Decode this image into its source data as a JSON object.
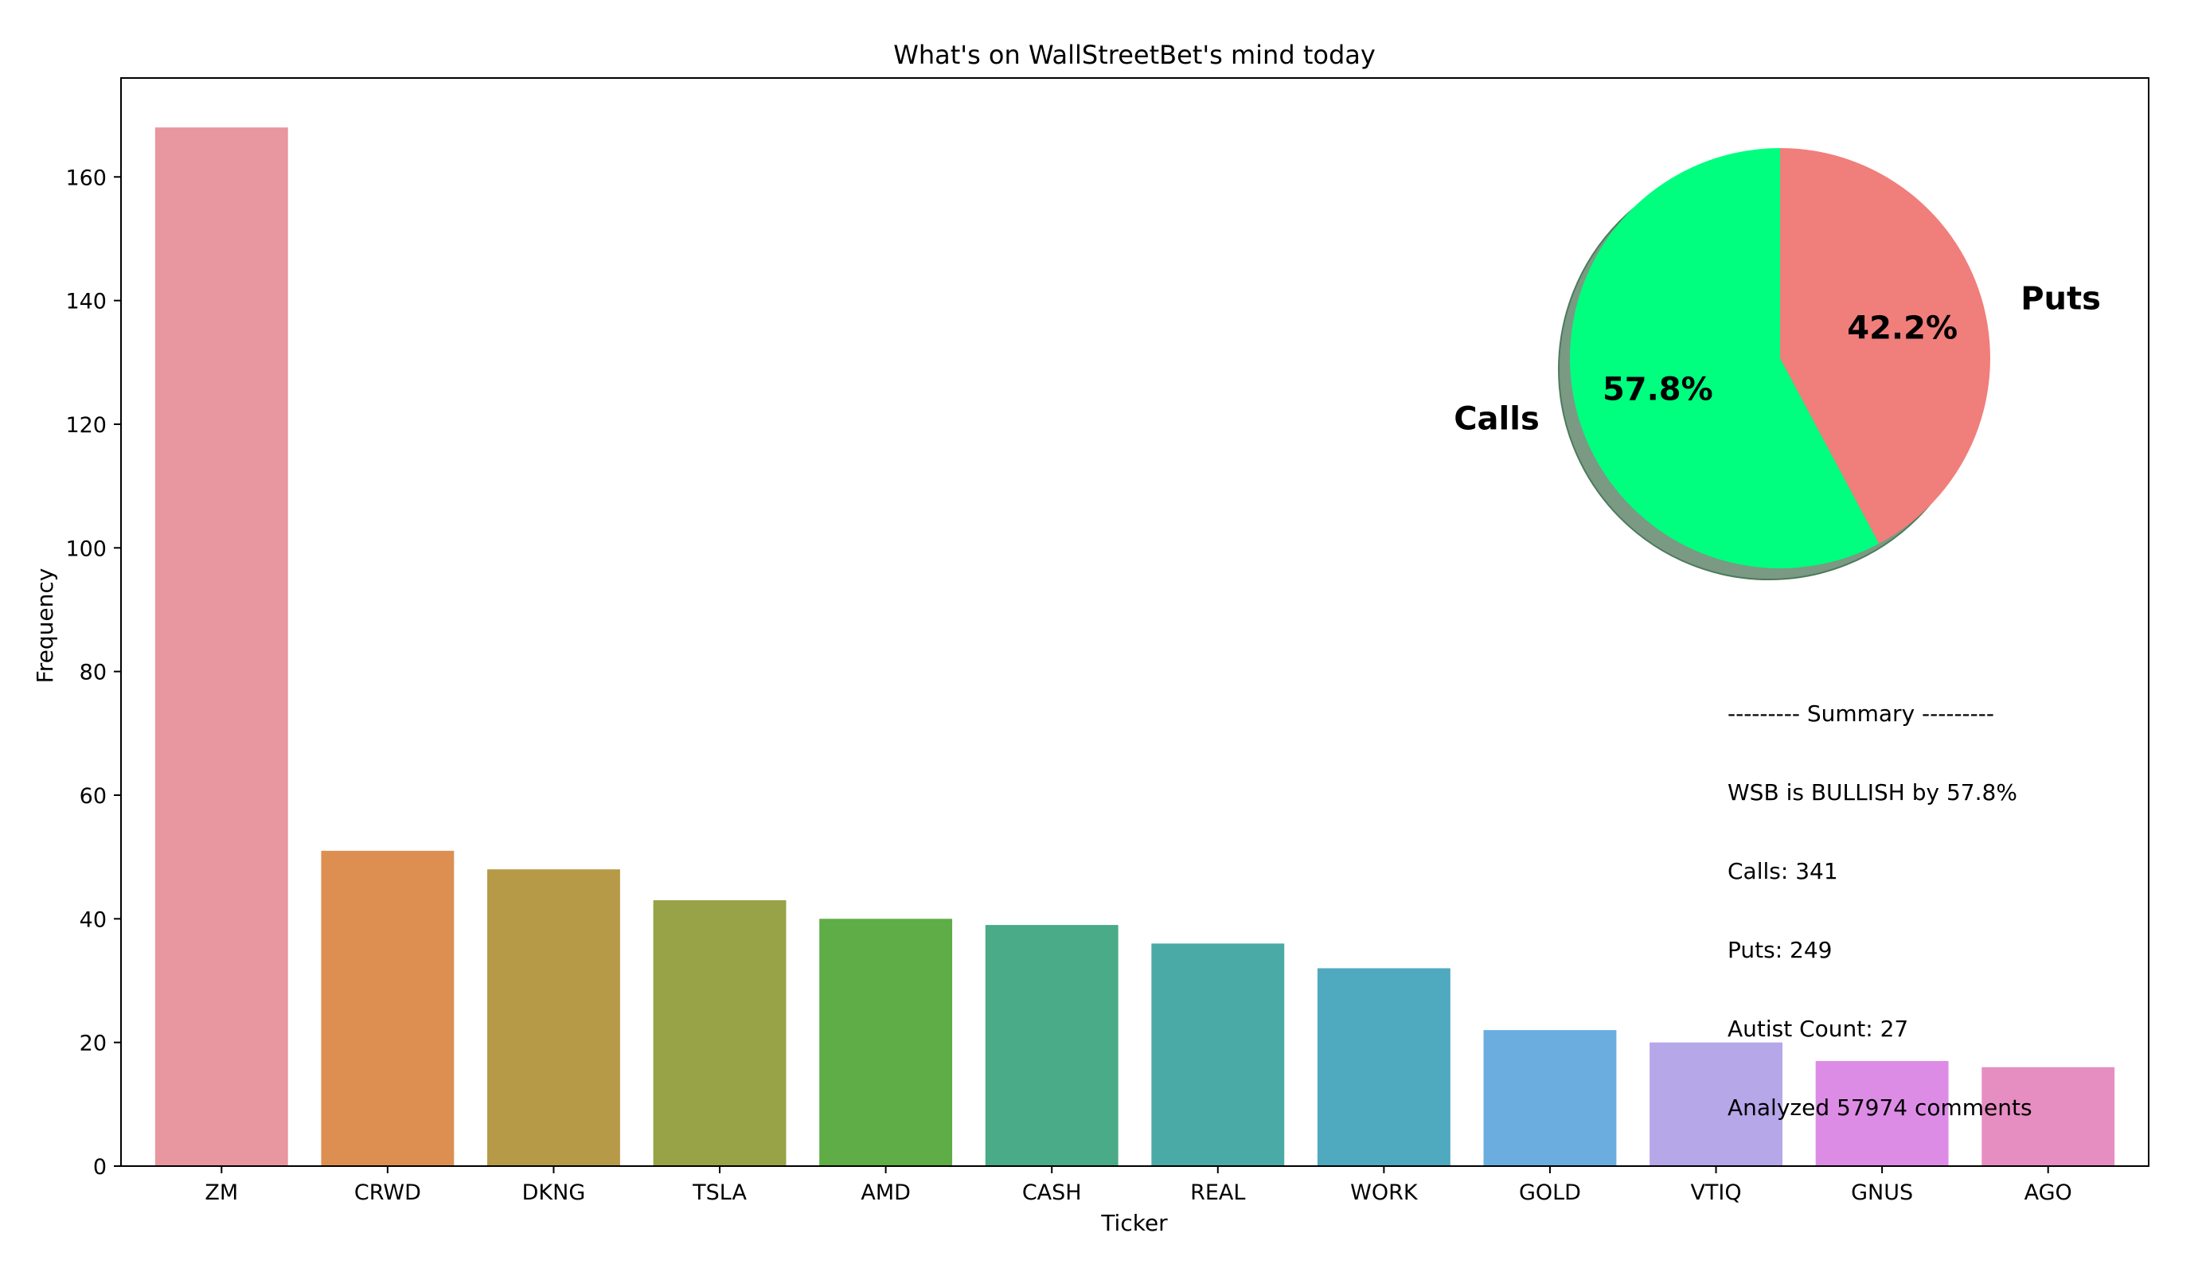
{
  "chart_data": {
    "type": "bar",
    "title": "What's on WallStreetBet's mind today",
    "xlabel": "Ticker",
    "ylabel": "Frequency",
    "ylim": [
      0,
      176
    ],
    "yticks": [
      0,
      20,
      40,
      60,
      80,
      100,
      120,
      140,
      160
    ],
    "grid": false,
    "categories": [
      "ZM",
      "CRWD",
      "DKNG",
      "TSLA",
      "AMD",
      "CASH",
      "REAL",
      "WORK",
      "GOLD",
      "VTIQ",
      "GNUS",
      "AGO"
    ],
    "values": [
      168,
      51,
      48,
      43,
      40,
      39,
      36,
      32,
      22,
      20,
      17,
      16
    ],
    "colors": [
      "#e8969f",
      "#dd8f52",
      "#b79a48",
      "#98a246",
      "#5fad46",
      "#49ab88",
      "#4aaaa6",
      "#4fa9bf",
      "#6badde",
      "#b5a7e8",
      "#dd8ce6",
      "#e68ec2"
    ]
  },
  "pie": {
    "type": "pie",
    "slices": [
      {
        "label": "Calls",
        "value": 57.8,
        "pct_label": "57.8%",
        "color": "#00ff7f"
      },
      {
        "label": "Puts",
        "value": 42.2,
        "pct_label": "42.2%",
        "color": "#f07e7b"
      }
    ],
    "shadow": true,
    "start_angle_deg": 90
  },
  "summary": [
    "--------- Summary ---------",
    "WSB is BULLISH by 57.8%",
    "Calls: 341",
    "Puts: 249",
    "Autist Count: 27",
    "Analyzed 57974 comments"
  ]
}
